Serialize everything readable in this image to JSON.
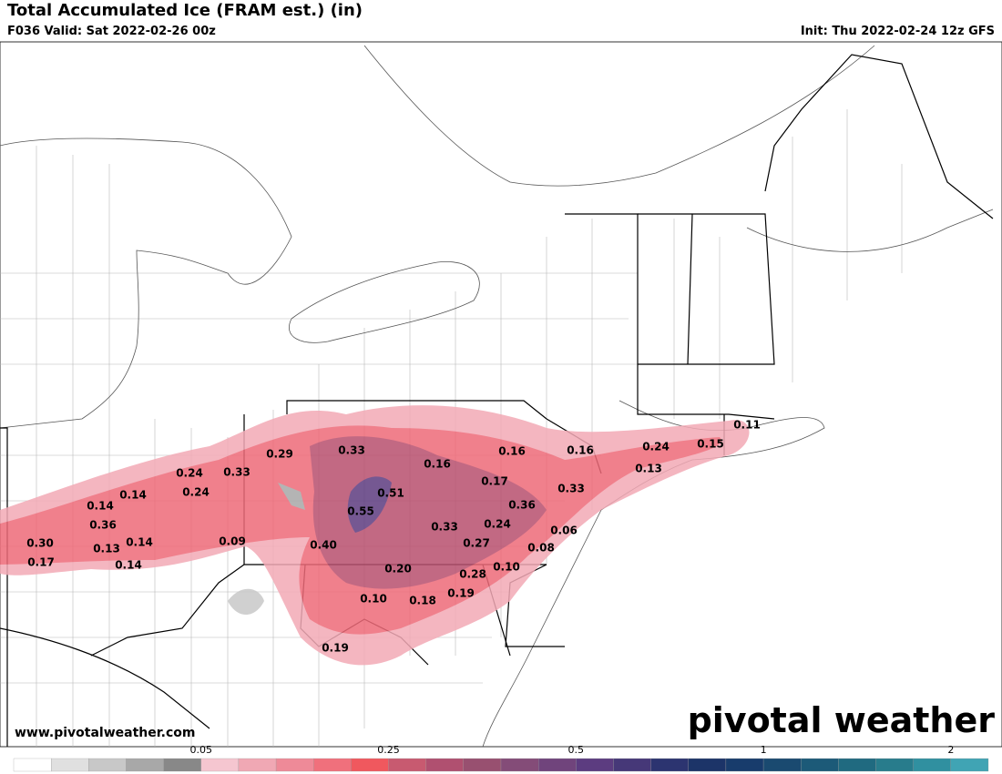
{
  "header": {
    "title": "Total Accumulated Ice (FRAM est.) (in)",
    "valid": "F036 Valid: Sat 2022-02-26 00z",
    "init": "Init: Thu 2022-02-24 12z GFS"
  },
  "map": {
    "labels": [
      "0.11",
      "0.24",
      "0.15",
      "0.13",
      "0.16",
      "0.16",
      "0.33",
      "0.29",
      "0.24",
      "0.33",
      "0.16",
      "0.17",
      "0.51",
      "0.33",
      "0.14",
      "0.14",
      "0.24",
      "0.36",
      "0.55",
      "0.33",
      "0.24",
      "0.06",
      "0.36",
      "0.30",
      "0.13",
      "0.14",
      "0.09",
      "0.40",
      "0.27",
      "0.08",
      "0.17",
      "0.14",
      "0.20",
      "0.10",
      "0.28",
      "0.10",
      "0.18",
      "0.19",
      "0.19"
    ]
  },
  "footer": {
    "website": "www.pivotalweather.com",
    "brand": "pivotal weather"
  },
  "colorbar": {
    "ticks": [
      "0.05",
      "0.25",
      "0.5",
      "1",
      "2"
    ],
    "colors": [
      "#ffffff",
      "#e0e0e0",
      "#c8c8c8",
      "#a8a8a8",
      "#888888",
      "#f5c6d0",
      "#f0a8b4",
      "#ee8a98",
      "#f0707c",
      "#f0585e",
      "#c85a70",
      "#b05070",
      "#985070",
      "#844c78",
      "#70447c",
      "#5c3c80",
      "#463878",
      "#2c3470",
      "#1c3468",
      "#183c6c",
      "#1a4a70",
      "#1c5a78",
      "#206a80",
      "#287c8c",
      "#3090a0",
      "#40a4b4"
    ]
  }
}
